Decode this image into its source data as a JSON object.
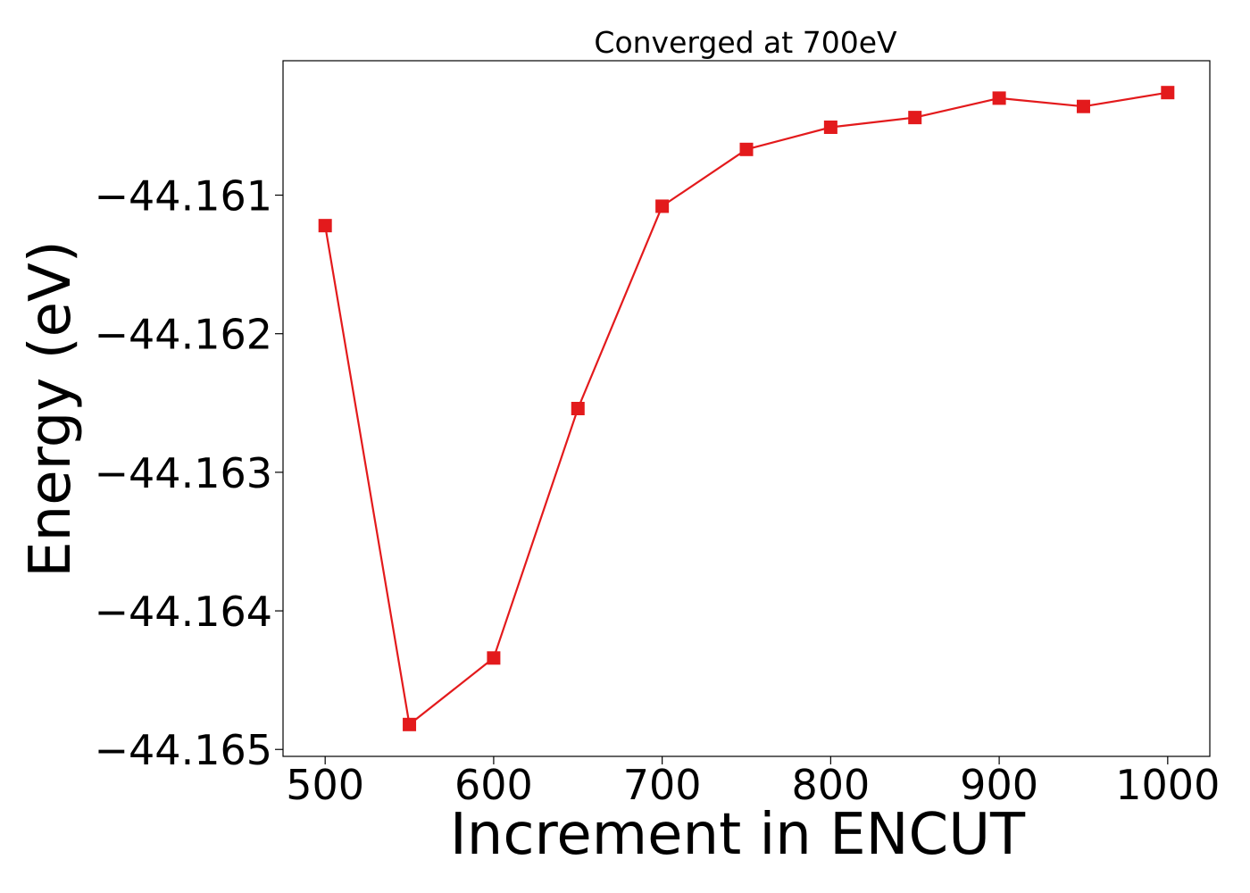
{
  "chart_data": {
    "type": "line",
    "title": "Converged at 700eV",
    "xlabel": "Increment in ENCUT",
    "ylabel": "Energy (eV)",
    "xlim": [
      475,
      1025
    ],
    "ylim": [
      -44.16505,
      -44.16003
    ],
    "xticks": [
      500,
      600,
      700,
      800,
      900,
      1000
    ],
    "yticks": [
      -44.165,
      -44.164,
      -44.163,
      -44.162,
      -44.161
    ],
    "ytick_labels": [
      "−44.165",
      "−44.164",
      "−44.163",
      "−44.162",
      "−44.161"
    ],
    "grid": false,
    "series": [
      {
        "color": "#e31a1c",
        "marker": "square",
        "x": [
          500,
          550,
          600,
          650,
          700,
          750,
          800,
          850,
          900,
          950,
          1000
        ],
        "y": [
          -44.16122,
          -44.16482,
          -44.16434,
          -44.16254,
          -44.16108,
          -44.16067,
          -44.16051,
          -44.16044,
          -44.1603,
          -44.16036,
          -44.16026
        ]
      }
    ]
  }
}
